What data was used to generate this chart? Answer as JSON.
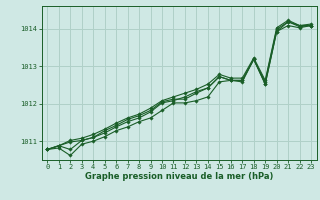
{
  "title": "Graphe pression niveau de la mer (hPa)",
  "bg_color": "#cfe8e4",
  "grid_color": "#b0d0c8",
  "line_color": "#1a5e28",
  "xlim": [
    -0.5,
    23.5
  ],
  "ylim": [
    1010.5,
    1014.6
  ],
  "yticks": [
    1011,
    1012,
    1013,
    1014
  ],
  "xticks": [
    0,
    1,
    2,
    3,
    4,
    5,
    6,
    7,
    8,
    9,
    10,
    11,
    12,
    13,
    14,
    15,
    16,
    17,
    18,
    19,
    20,
    21,
    22,
    23
  ],
  "series": [
    [
      1010.78,
      1010.88,
      1010.78,
      1011.02,
      1011.1,
      1011.28,
      1011.42,
      1011.58,
      1011.68,
      1011.82,
      1012.05,
      1012.12,
      1012.12,
      1012.28,
      1012.42,
      1012.72,
      1012.62,
      1012.62,
      1013.18,
      1012.52,
      1013.92,
      1014.18,
      1014.05,
      1014.08
    ],
    [
      1010.78,
      1010.88,
      1010.98,
      1011.02,
      1011.1,
      1011.22,
      1011.38,
      1011.52,
      1011.62,
      1011.78,
      1012.02,
      1012.08,
      1012.18,
      1012.32,
      1012.42,
      1012.72,
      1012.62,
      1012.62,
      1013.18,
      1012.58,
      1013.98,
      1014.18,
      1014.08,
      1014.08
    ],
    [
      1010.78,
      1010.82,
      1010.62,
      1010.92,
      1011.0,
      1011.12,
      1011.28,
      1011.38,
      1011.52,
      1011.62,
      1011.82,
      1012.02,
      1012.02,
      1012.08,
      1012.18,
      1012.58,
      1012.62,
      1012.58,
      1013.18,
      1012.52,
      1013.92,
      1014.08,
      1014.02,
      1014.08
    ],
    [
      1010.78,
      1010.88,
      1011.02,
      1011.08,
      1011.18,
      1011.32,
      1011.48,
      1011.62,
      1011.72,
      1011.88,
      1012.08,
      1012.18,
      1012.28,
      1012.38,
      1012.52,
      1012.78,
      1012.68,
      1012.68,
      1013.22,
      1012.62,
      1014.02,
      1014.22,
      1014.08,
      1014.12
    ]
  ]
}
